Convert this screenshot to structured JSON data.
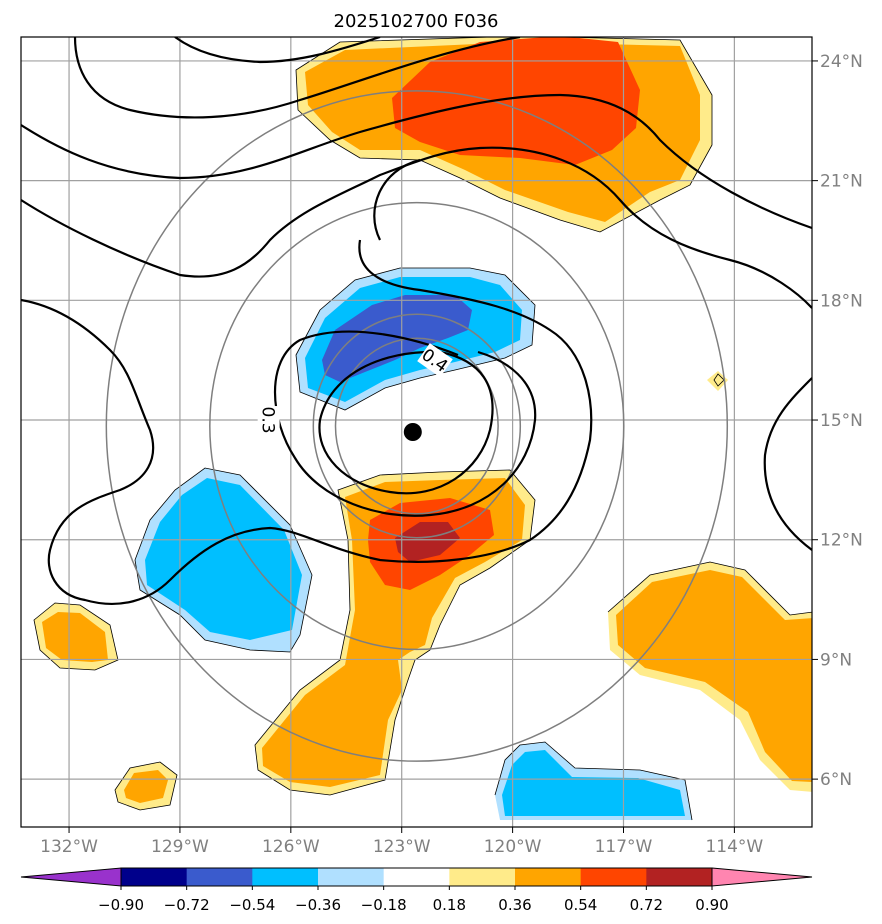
{
  "chart_data": {
    "type": "contour_map",
    "title": "2025102700 F036",
    "lon_range": [
      -133.3,
      -111.9
    ],
    "lat_range": [
      4.8,
      24.6
    ],
    "x_ticks": [
      -132,
      -129,
      -126,
      -123,
      -120,
      -117,
      -114
    ],
    "x_tick_labels": [
      "132°W",
      "129°W",
      "126°W",
      "123°W",
      "120°W",
      "117°W",
      "114°W"
    ],
    "y_ticks": [
      6,
      9,
      12,
      15,
      18,
      21,
      24
    ],
    "y_tick_labels": [
      "6°N",
      "9°N",
      "12°N",
      "15°N",
      "18°N",
      "21°N",
      "24°N"
    ],
    "grid": true,
    "storm_center": {
      "lon": -122.7,
      "lat": 14.7
    },
    "range_rings_deg": [
      2.2,
      2.8,
      5.6,
      8.4
    ],
    "line_contour_labels": [
      {
        "text": "0.4",
        "lon": -122.1,
        "lat": 16.5
      },
      {
        "text": "0.3",
        "lon": -126.6,
        "lat": 15.0
      }
    ],
    "colorbar": {
      "levels": [
        -0.9,
        -0.72,
        -0.54,
        -0.36,
        -0.18,
        0.18,
        0.36,
        0.54,
        0.72,
        0.9
      ],
      "tick_labels": [
        "−0.90",
        "−0.72",
        "−0.54",
        "−0.36",
        "−0.18",
        "0.18",
        "0.36",
        "0.54",
        "0.72",
        "0.90"
      ],
      "colors": [
        "#9932cc",
        "#00008b",
        "#3a5bcd",
        "#00bfff",
        "#b0e0ff",
        "#ffffff",
        "#ffeb8a",
        "#ffa500",
        "#ff4500",
        "#b22222",
        "#ff85b0"
      ],
      "extend": "both"
    }
  }
}
